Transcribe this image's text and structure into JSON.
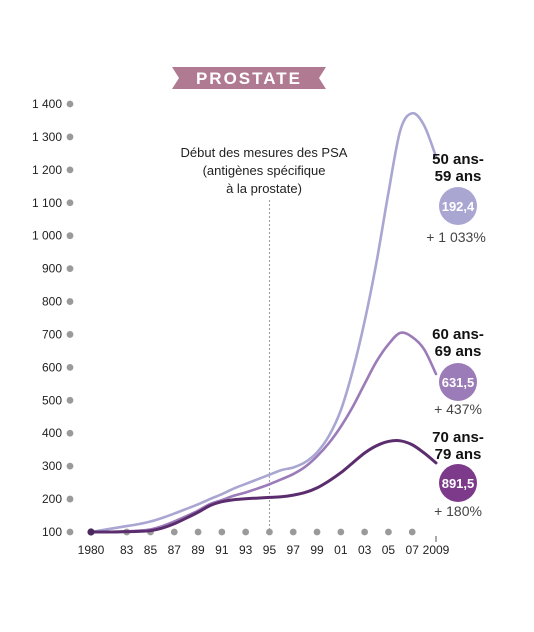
{
  "chart_data": {
    "type": "line",
    "title": "PROSTATE",
    "annotation": [
      "Début des mesures des  PSA",
      "(antigènes spécifique",
      "à la prostate)"
    ],
    "annotation_x": 1995,
    "xlim": [
      1980,
      2009
    ],
    "ylim": [
      100,
      1400
    ],
    "yticks": [
      100,
      200,
      300,
      400,
      500,
      600,
      700,
      800,
      900,
      1000,
      1100,
      1200,
      1300,
      1400
    ],
    "ytick_labels": [
      "100",
      "200",
      "300",
      "400",
      "500",
      "600",
      "700",
      "800",
      "900",
      "1 000",
      "1 100",
      "1 200",
      "1 300",
      "1 400"
    ],
    "xticks": [
      1980,
      1983,
      1985,
      1987,
      1989,
      1991,
      1993,
      1995,
      1997,
      1999,
      2001,
      2003,
      2005,
      2007,
      2009
    ],
    "xtick_labels": [
      "1980",
      "83",
      "85",
      "87",
      "89",
      "91",
      "93",
      "95",
      "97",
      "99",
      "01",
      "03",
      "05",
      "07",
      "2009"
    ],
    "x": [
      1980,
      1981,
      1982,
      1983,
      1984,
      1985,
      1986,
      1987,
      1988,
      1989,
      1990,
      1991,
      1992,
      1993,
      1994,
      1995,
      1996,
      1997,
      1998,
      1999,
      2000,
      2001,
      2002,
      2003,
      2004,
      2005,
      2006,
      2007,
      2008,
      2009
    ],
    "series": [
      {
        "name": "50 ans-59 ans",
        "name_lines": [
          "50 ans-",
          "59 ans"
        ],
        "badge": "192,4",
        "change": "+ 1 033%",
        "color": "#a9a6d2",
        "values": [
          100,
          106,
          112,
          118,
          124,
          132,
          143,
          156,
          170,
          184,
          200,
          215,
          232,
          246,
          260,
          274,
          288,
          296,
          312,
          342,
          392,
          470,
          590,
          740,
          920,
          1130,
          1320,
          1372,
          1335,
          1240
        ]
      },
      {
        "name": "60 ans-69 ans",
        "name_lines": [
          "60 ans-",
          "69 ans"
        ],
        "badge": "631,5",
        "change": "+ 437%",
        "color": "#9b7bb8",
        "values": [
          100,
          100,
          101,
          102,
          104,
          108,
          118,
          132,
          148,
          165,
          185,
          197,
          210,
          220,
          232,
          245,
          260,
          276,
          298,
          330,
          370,
          420,
          480,
          550,
          618,
          670,
          705,
          692,
          655,
          580
        ]
      },
      {
        "name": "70 ans-79 ans",
        "name_lines": [
          "70 ans-",
          "79 ans"
        ],
        "badge": "891,5",
        "change": "+ 180%",
        "color": "#5b2d6e",
        "values": [
          100,
          100,
          100,
          101,
          102,
          104,
          112,
          125,
          142,
          160,
          180,
          192,
          198,
          201,
          203,
          205,
          207,
          212,
          220,
          234,
          255,
          280,
          310,
          340,
          362,
          375,
          377,
          365,
          340,
          310
        ]
      }
    ]
  }
}
